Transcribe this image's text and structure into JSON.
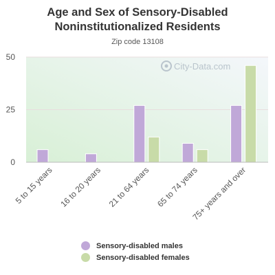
{
  "chart_data": {
    "type": "bar",
    "title": "Age and Sex of Sensory-Disabled Noninstitutionalized Residents",
    "subtitle": "Zip code 13108",
    "categories": [
      "5 to 15 years",
      "16 to 20 years",
      "21 to 64 years",
      "65 to 74 years",
      "75+ years and over"
    ],
    "series": [
      {
        "name": "Sensory-disabled males",
        "color": "#c0a8d8",
        "values": [
          6,
          4,
          27,
          9,
          27
        ]
      },
      {
        "name": "Sensory-disabled females",
        "color": "#c8dba8",
        "values": [
          0,
          0,
          12,
          6,
          46
        ]
      }
    ],
    "ylim": [
      0,
      50
    ],
    "yticks": [
      0,
      25,
      50
    ],
    "grid": true,
    "legend_position": "bottom",
    "watermark": "City-Data.com"
  }
}
